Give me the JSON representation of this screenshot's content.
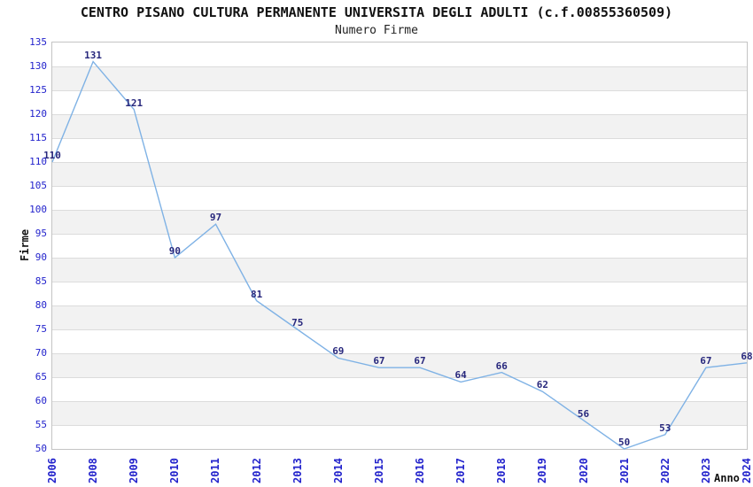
{
  "chart_data": {
    "type": "line",
    "title": "CENTRO PISANO CULTURA PERMANENTE UNIVERSITA DEGLI ADULTI (c.f.00855360509)",
    "subtitle": "Numero Firme",
    "xlabel": "Anno",
    "ylabel": "Firme",
    "categories": [
      "2006",
      "2008",
      "2009",
      "2010",
      "2011",
      "2012",
      "2013",
      "2014",
      "2015",
      "2016",
      "2017",
      "2018",
      "2019",
      "2020",
      "2021",
      "2022",
      "2023",
      "2024"
    ],
    "values": [
      110,
      131,
      121,
      90,
      97,
      81,
      75,
      69,
      67,
      67,
      64,
      66,
      62,
      56,
      50,
      53,
      67,
      68
    ],
    "ylim": [
      50,
      135
    ],
    "ytick_step": 5,
    "legend_position": "none",
    "grid": "horizontal-gridlines-with-alternating-bands",
    "colors": {
      "line": "#7fb2e5",
      "data_label": "#28287d",
      "tick_label": "#2323cc",
      "band": "#f2f2f2",
      "gridline": "#dcdcdc",
      "plot_border": "#c4c4c4",
      "title_text": "#111111",
      "background": "#ffffff"
    }
  }
}
